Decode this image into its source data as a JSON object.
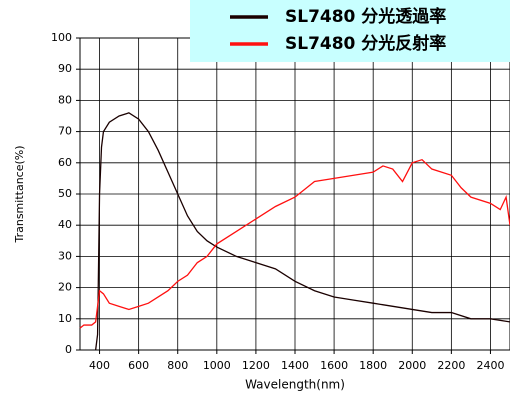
{
  "chart_data": {
    "type": "line",
    "xlabel": "Wavelength(nm)",
    "ylabel": "Transmittance(%)",
    "xlim": [
      300,
      2500
    ],
    "ylim": [
      0,
      100
    ],
    "xticks": [
      400,
      600,
      800,
      1000,
      1200,
      1400,
      1600,
      1800,
      2000,
      2200,
      2400
    ],
    "yticks": [
      0,
      10,
      20,
      30,
      40,
      50,
      60,
      70,
      80,
      90,
      100
    ],
    "grid": true,
    "legend": "top-right",
    "series": [
      {
        "name": "SL7480 分光透過率",
        "color": "#1a0000",
        "x": [
          380,
          390,
          400,
          410,
          420,
          450,
          500,
          550,
          600,
          650,
          700,
          750,
          800,
          850,
          900,
          950,
          1000,
          1100,
          1200,
          1300,
          1400,
          1500,
          1600,
          1700,
          1800,
          1900,
          2000,
          2100,
          2200,
          2300,
          2400,
          2500
        ],
        "values": [
          0,
          5,
          50,
          65,
          70,
          73,
          75,
          76,
          74,
          70,
          64,
          57,
          50,
          43,
          38,
          35,
          33,
          30,
          28,
          26,
          22,
          19,
          17,
          16,
          15,
          14,
          13,
          12,
          12,
          10,
          10,
          9
        ]
      },
      {
        "name": "SL7480 分光反射率",
        "color": "#ff1010",
        "x": [
          300,
          320,
          360,
          380,
          400,
          420,
          450,
          500,
          550,
          600,
          650,
          700,
          750,
          800,
          850,
          900,
          950,
          1000,
          1100,
          1200,
          1300,
          1400,
          1500,
          1600,
          1700,
          1800,
          1850,
          1900,
          1950,
          2000,
          2050,
          2100,
          2200,
          2250,
          2300,
          2400,
          2450,
          2480,
          2500
        ],
        "values": [
          7,
          8,
          8,
          9,
          19,
          18,
          15,
          14,
          13,
          14,
          15,
          17,
          19,
          22,
          24,
          28,
          30,
          34,
          38,
          42,
          46,
          49,
          54,
          55,
          56,
          57,
          59,
          58,
          54,
          60,
          61,
          58,
          56,
          52,
          49,
          47,
          45,
          49,
          40
        ]
      }
    ]
  }
}
